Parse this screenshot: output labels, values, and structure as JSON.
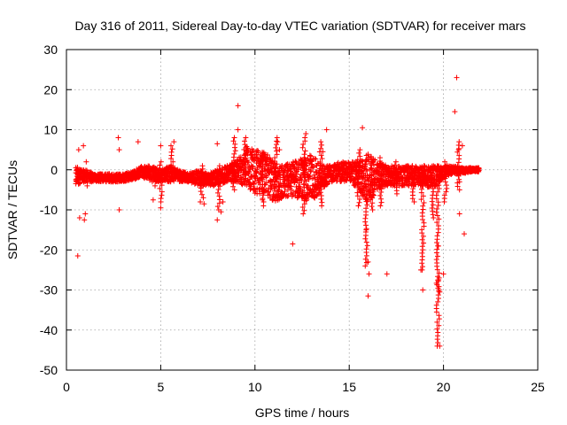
{
  "chart_data": {
    "type": "scatter",
    "title": "Day 316 of 2011, Sidereal Day-to-day VTEC variation (SDTVAR) for receiver mars",
    "xlabel": "GPS time / hours",
    "ylabel": "SDTVAR / TECUs",
    "xlim": [
      0,
      25
    ],
    "ylim": [
      -50,
      30
    ],
    "xticks": [
      0,
      5,
      10,
      15,
      20,
      25
    ],
    "yticks": [
      -50,
      -40,
      -30,
      -20,
      -10,
      0,
      10,
      20,
      30
    ],
    "xtick_labels": [
      "0",
      "5",
      "10",
      "15",
      "20",
      "25"
    ],
    "ytick_labels": [
      "-50",
      "-40",
      "-30",
      "-20",
      "-10",
      "0",
      "10",
      "20",
      "30"
    ],
    "grid": true,
    "marker": "plus",
    "series": [
      {
        "name": "SDTVAR",
        "color": "#ff0000",
        "band": [
          [
            0.5,
            -4,
            1
          ],
          [
            1.0,
            -3,
            0
          ],
          [
            1.5,
            -3,
            -1
          ],
          [
            2.0,
            -3,
            -1
          ],
          [
            2.5,
            -3,
            -1
          ],
          [
            3.0,
            -3,
            -1
          ],
          [
            3.5,
            -2.5,
            -0.5
          ],
          [
            4.0,
            -2,
            1
          ],
          [
            4.5,
            -3,
            1
          ],
          [
            5.0,
            -3,
            0
          ],
          [
            5.5,
            -3,
            1
          ],
          [
            6.0,
            -3,
            0
          ],
          [
            6.5,
            -3,
            -1
          ],
          [
            7.0,
            -4,
            0
          ],
          [
            7.5,
            -4,
            -1
          ],
          [
            8.0,
            -4,
            0
          ],
          [
            8.5,
            -3,
            1
          ],
          [
            9.0,
            -3,
            2
          ],
          [
            9.5,
            -4,
            6
          ],
          [
            10.0,
            -6,
            5
          ],
          [
            10.5,
            -6,
            5
          ],
          [
            11.0,
            -8,
            2
          ],
          [
            11.5,
            -7,
            1
          ],
          [
            12.0,
            -7,
            2
          ],
          [
            12.5,
            -7,
            3
          ],
          [
            13.0,
            -9,
            4
          ],
          [
            13.5,
            -5,
            1
          ],
          [
            14.0,
            -3,
            1
          ],
          [
            14.5,
            -3,
            2
          ],
          [
            15.0,
            -3,
            2
          ],
          [
            15.5,
            -5,
            2
          ],
          [
            16.0,
            -9,
            4
          ],
          [
            16.5,
            -5,
            2
          ],
          [
            17.0,
            -4,
            1
          ],
          [
            17.5,
            -4,
            1
          ],
          [
            18.0,
            -4,
            1
          ],
          [
            18.5,
            -4,
            1
          ],
          [
            19.0,
            -4,
            1
          ],
          [
            19.5,
            -5,
            1
          ],
          [
            20.0,
            -2,
            1
          ],
          [
            20.5,
            -1,
            1
          ],
          [
            21.0,
            -1,
            0.5
          ],
          [
            21.5,
            -0.5,
            0.5
          ],
          [
            21.9,
            -0.5,
            0.5
          ]
        ],
        "outliers": [
          [
            0.6,
            -21.5
          ],
          [
            0.65,
            5
          ],
          [
            0.7,
            -12
          ],
          [
            0.9,
            6
          ],
          [
            0.95,
            -12.5
          ],
          [
            1.0,
            -11
          ],
          [
            1.05,
            2
          ],
          [
            1.1,
            -4
          ],
          [
            2.75,
            8
          ],
          [
            2.8,
            5
          ],
          [
            2.8,
            -10
          ],
          [
            3.8,
            7
          ],
          [
            4.6,
            -7.5
          ],
          [
            4.7,
            -4
          ],
          [
            5.0,
            -9.5
          ],
          [
            5.0,
            6
          ],
          [
            5.7,
            7
          ],
          [
            7.1,
            -8
          ],
          [
            7.3,
            -8.5
          ],
          [
            8.0,
            6.5
          ],
          [
            8.0,
            -12.5
          ],
          [
            8.2,
            -10.5
          ],
          [
            8.3,
            -8
          ],
          [
            9.1,
            16
          ],
          [
            9.1,
            10
          ],
          [
            10.4,
            -7.5
          ],
          [
            10.45,
            -9
          ],
          [
            11.2,
            7
          ],
          [
            11.3,
            5
          ],
          [
            12.0,
            -18.5
          ],
          [
            12.7,
            9
          ],
          [
            13.6,
            4.5
          ],
          [
            13.8,
            10
          ],
          [
            15.7,
            10.5
          ],
          [
            15.9,
            -15
          ],
          [
            16.0,
            -23
          ],
          [
            16.0,
            -31.5
          ],
          [
            16.05,
            -26
          ],
          [
            17.0,
            -26
          ],
          [
            18.8,
            -25
          ],
          [
            18.9,
            -30
          ],
          [
            19.7,
            -19
          ],
          [
            19.7,
            -27.5
          ],
          [
            19.8,
            -30.5
          ],
          [
            19.8,
            -44
          ],
          [
            20.0,
            -26
          ],
          [
            20.6,
            14.5
          ],
          [
            20.7,
            23
          ],
          [
            20.85,
            -3
          ],
          [
            20.85,
            -11
          ],
          [
            21.1,
            -16
          ],
          [
            21.0,
            6
          ],
          [
            20.8,
            5
          ]
        ],
        "spikes": [
          [
            5.0,
            -8,
            2
          ],
          [
            5.6,
            -2,
            6
          ],
          [
            7.2,
            -7,
            1
          ],
          [
            8.1,
            -10,
            1
          ],
          [
            8.9,
            -5,
            8
          ],
          [
            9.5,
            -3,
            8
          ],
          [
            10.4,
            -8,
            4
          ],
          [
            11.1,
            -7,
            8
          ],
          [
            12.6,
            -11,
            8
          ],
          [
            13.5,
            -9,
            7
          ],
          [
            15.5,
            -9,
            5
          ],
          [
            15.9,
            -24,
            -2
          ],
          [
            16.2,
            -10,
            2
          ],
          [
            16.7,
            -9,
            3
          ],
          [
            17.5,
            -6,
            2
          ],
          [
            18.4,
            -8,
            1
          ],
          [
            18.9,
            -25,
            1
          ],
          [
            19.4,
            -12,
            1
          ],
          [
            19.7,
            -30,
            -3
          ],
          [
            19.7,
            -44,
            -27
          ],
          [
            20.1,
            -8,
            2
          ],
          [
            20.8,
            -5,
            7
          ]
        ]
      }
    ]
  }
}
